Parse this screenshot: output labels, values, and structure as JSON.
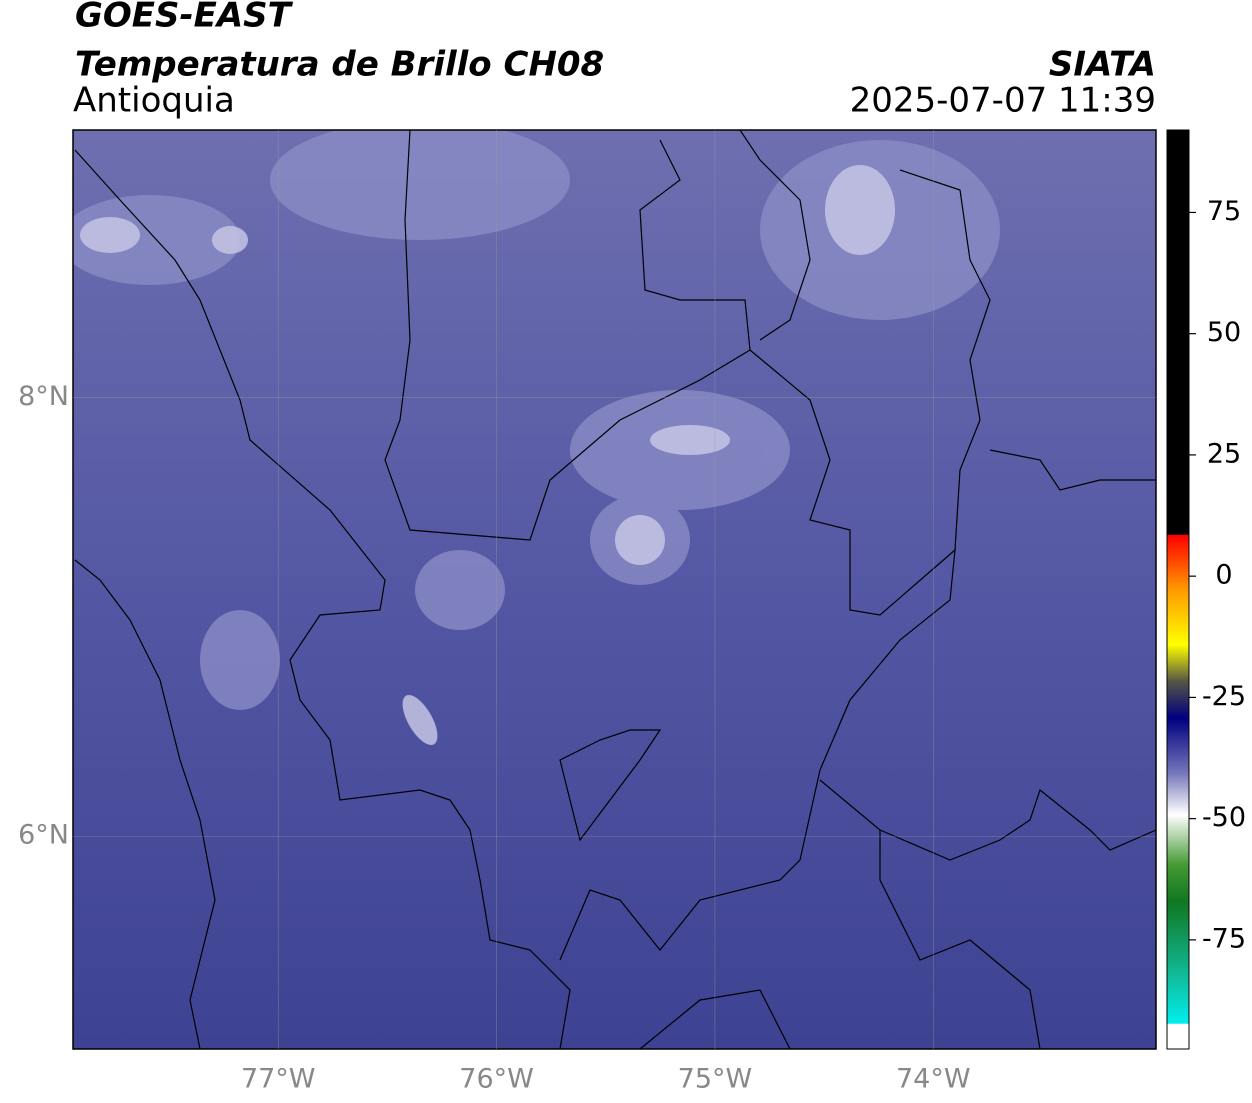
{
  "header": {
    "title": "GOES-EAST",
    "subtitle": "Temperatura de Brillo CH08",
    "region": "Antioquia",
    "source": "SIATA",
    "timestamp": "2025-07-07 11:39"
  },
  "map": {
    "xlim": [
      -77.94,
      -72.98
    ],
    "ylim": [
      5.03,
      9.22
    ],
    "xticks": [
      {
        "value": -77,
        "label": "77°W"
      },
      {
        "value": -76,
        "label": "76°W"
      },
      {
        "value": -75,
        "label": "75°W"
      },
      {
        "value": -74,
        "label": "74°W"
      }
    ],
    "yticks": [
      {
        "value": 6,
        "label": "6°N"
      },
      {
        "value": 8,
        "label": "8°N"
      }
    ],
    "grid": true
  },
  "colorbar": {
    "range": [
      -97.5,
      92
    ],
    "ticks": [
      -75,
      -50,
      -25,
      0,
      25,
      50,
      75
    ]
  }
}
